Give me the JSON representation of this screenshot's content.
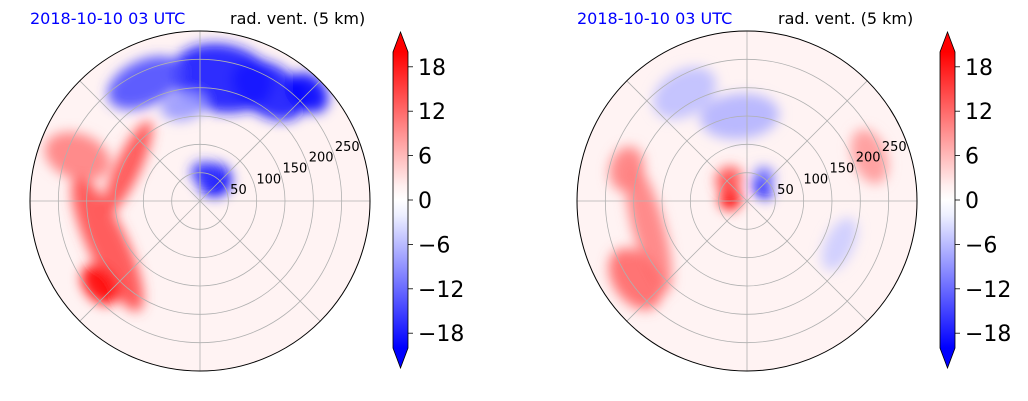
{
  "chart_data": [
    {
      "type": "heatmap",
      "projection": "polar",
      "title_left": "2018-10-10 03 UTC",
      "title_right": "rad. vent. (5 km)",
      "radial_tick_labels": [
        "50",
        "100",
        "150",
        "200",
        "250"
      ],
      "radial_ticks": [
        50,
        100,
        150,
        200,
        250
      ],
      "r_max": 300,
      "grid": true,
      "grid_spokes_deg": [
        0,
        45,
        90,
        135,
        180,
        225,
        270,
        315
      ],
      "colorbar": {
        "range": [
          -20,
          20
        ],
        "tick_values": [
          18,
          12,
          6,
          0,
          -6,
          -12,
          -18
        ],
        "tick_labels": [
          "18",
          "12",
          "6",
          "0",
          "−6",
          "−12",
          "−18"
        ],
        "extend": "both",
        "colors": {
          "negative": "#0000ff",
          "zero": "#ffffff",
          "positive": "#ff0000"
        }
      },
      "field_blobs": [
        {
          "r": 220,
          "theta": 80,
          "rx": 90,
          "ry": 60,
          "value": -18
        },
        {
          "r": 230,
          "theta": 58,
          "rx": 70,
          "ry": 45,
          "value": -18
        },
        {
          "r": 230,
          "theta": 115,
          "rx": 70,
          "ry": 40,
          "value": -14
        },
        {
          "r": 170,
          "theta": 100,
          "rx": 40,
          "ry": 25,
          "value": -8
        },
        {
          "r": 45,
          "theta": 55,
          "rx": 30,
          "ry": 30,
          "value": -20
        },
        {
          "r": 50,
          "theta": 80,
          "rx": 25,
          "ry": 20,
          "value": -16
        },
        {
          "r": 140,
          "theta": 155,
          "rx": 90,
          "ry": 22,
          "value": 14
        },
        {
          "r": 230,
          "theta": 160,
          "rx": 40,
          "ry": 60,
          "value": 10
        },
        {
          "r": 180,
          "theta": 205,
          "rx": 130,
          "ry": 35,
          "value": 14
        },
        {
          "r": 230,
          "theta": 220,
          "rx": 40,
          "ry": 28,
          "value": 20
        },
        {
          "r": 270,
          "theta": 45,
          "rx": 40,
          "ry": 30,
          "value": -20
        }
      ]
    },
    {
      "type": "heatmap",
      "projection": "polar",
      "title_left": "2018-10-10 03 UTC",
      "title_right": "rad. vent. (5 km)",
      "radial_tick_labels": [
        "50",
        "100",
        "150",
        "200",
        "250"
      ],
      "radial_ticks": [
        50,
        100,
        150,
        200,
        250
      ],
      "r_max": 300,
      "grid": true,
      "grid_spokes_deg": [
        0,
        45,
        90,
        135,
        180,
        225,
        270,
        315
      ],
      "colorbar": {
        "range": [
          -20,
          20
        ],
        "tick_values": [
          18,
          12,
          6,
          0,
          -6,
          -12,
          -18
        ],
        "tick_labels": [
          "18",
          "12",
          "6",
          "0",
          "−6",
          "−12",
          "−18"
        ],
        "extend": "both",
        "colors": {
          "negative": "#0000ff",
          "zero": "#ffffff",
          "positive": "#ff0000"
        }
      },
      "field_blobs": [
        {
          "r": 30,
          "theta": 170,
          "rx": 22,
          "ry": 20,
          "value": 20
        },
        {
          "r": 50,
          "theta": 130,
          "rx": 25,
          "ry": 22,
          "value": 14
        },
        {
          "r": 35,
          "theta": 40,
          "rx": 22,
          "ry": 14,
          "value": -20
        },
        {
          "r": 55,
          "theta": 55,
          "rx": 18,
          "ry": 14,
          "value": -12
        },
        {
          "r": 180,
          "theta": 195,
          "rx": 120,
          "ry": 28,
          "value": 10
        },
        {
          "r": 240,
          "theta": 215,
          "rx": 60,
          "ry": 40,
          "value": 12
        },
        {
          "r": 220,
          "theta": 165,
          "rx": 40,
          "ry": 30,
          "value": 10
        },
        {
          "r": 230,
          "theta": 20,
          "rx": 50,
          "ry": 30,
          "value": 8
        },
        {
          "r": 150,
          "theta": 95,
          "rx": 70,
          "ry": 40,
          "value": -6
        },
        {
          "r": 220,
          "theta": 120,
          "rx": 60,
          "ry": 40,
          "value": -5
        },
        {
          "r": 180,
          "theta": 335,
          "rx": 50,
          "ry": 25,
          "value": -4
        }
      ]
    }
  ]
}
